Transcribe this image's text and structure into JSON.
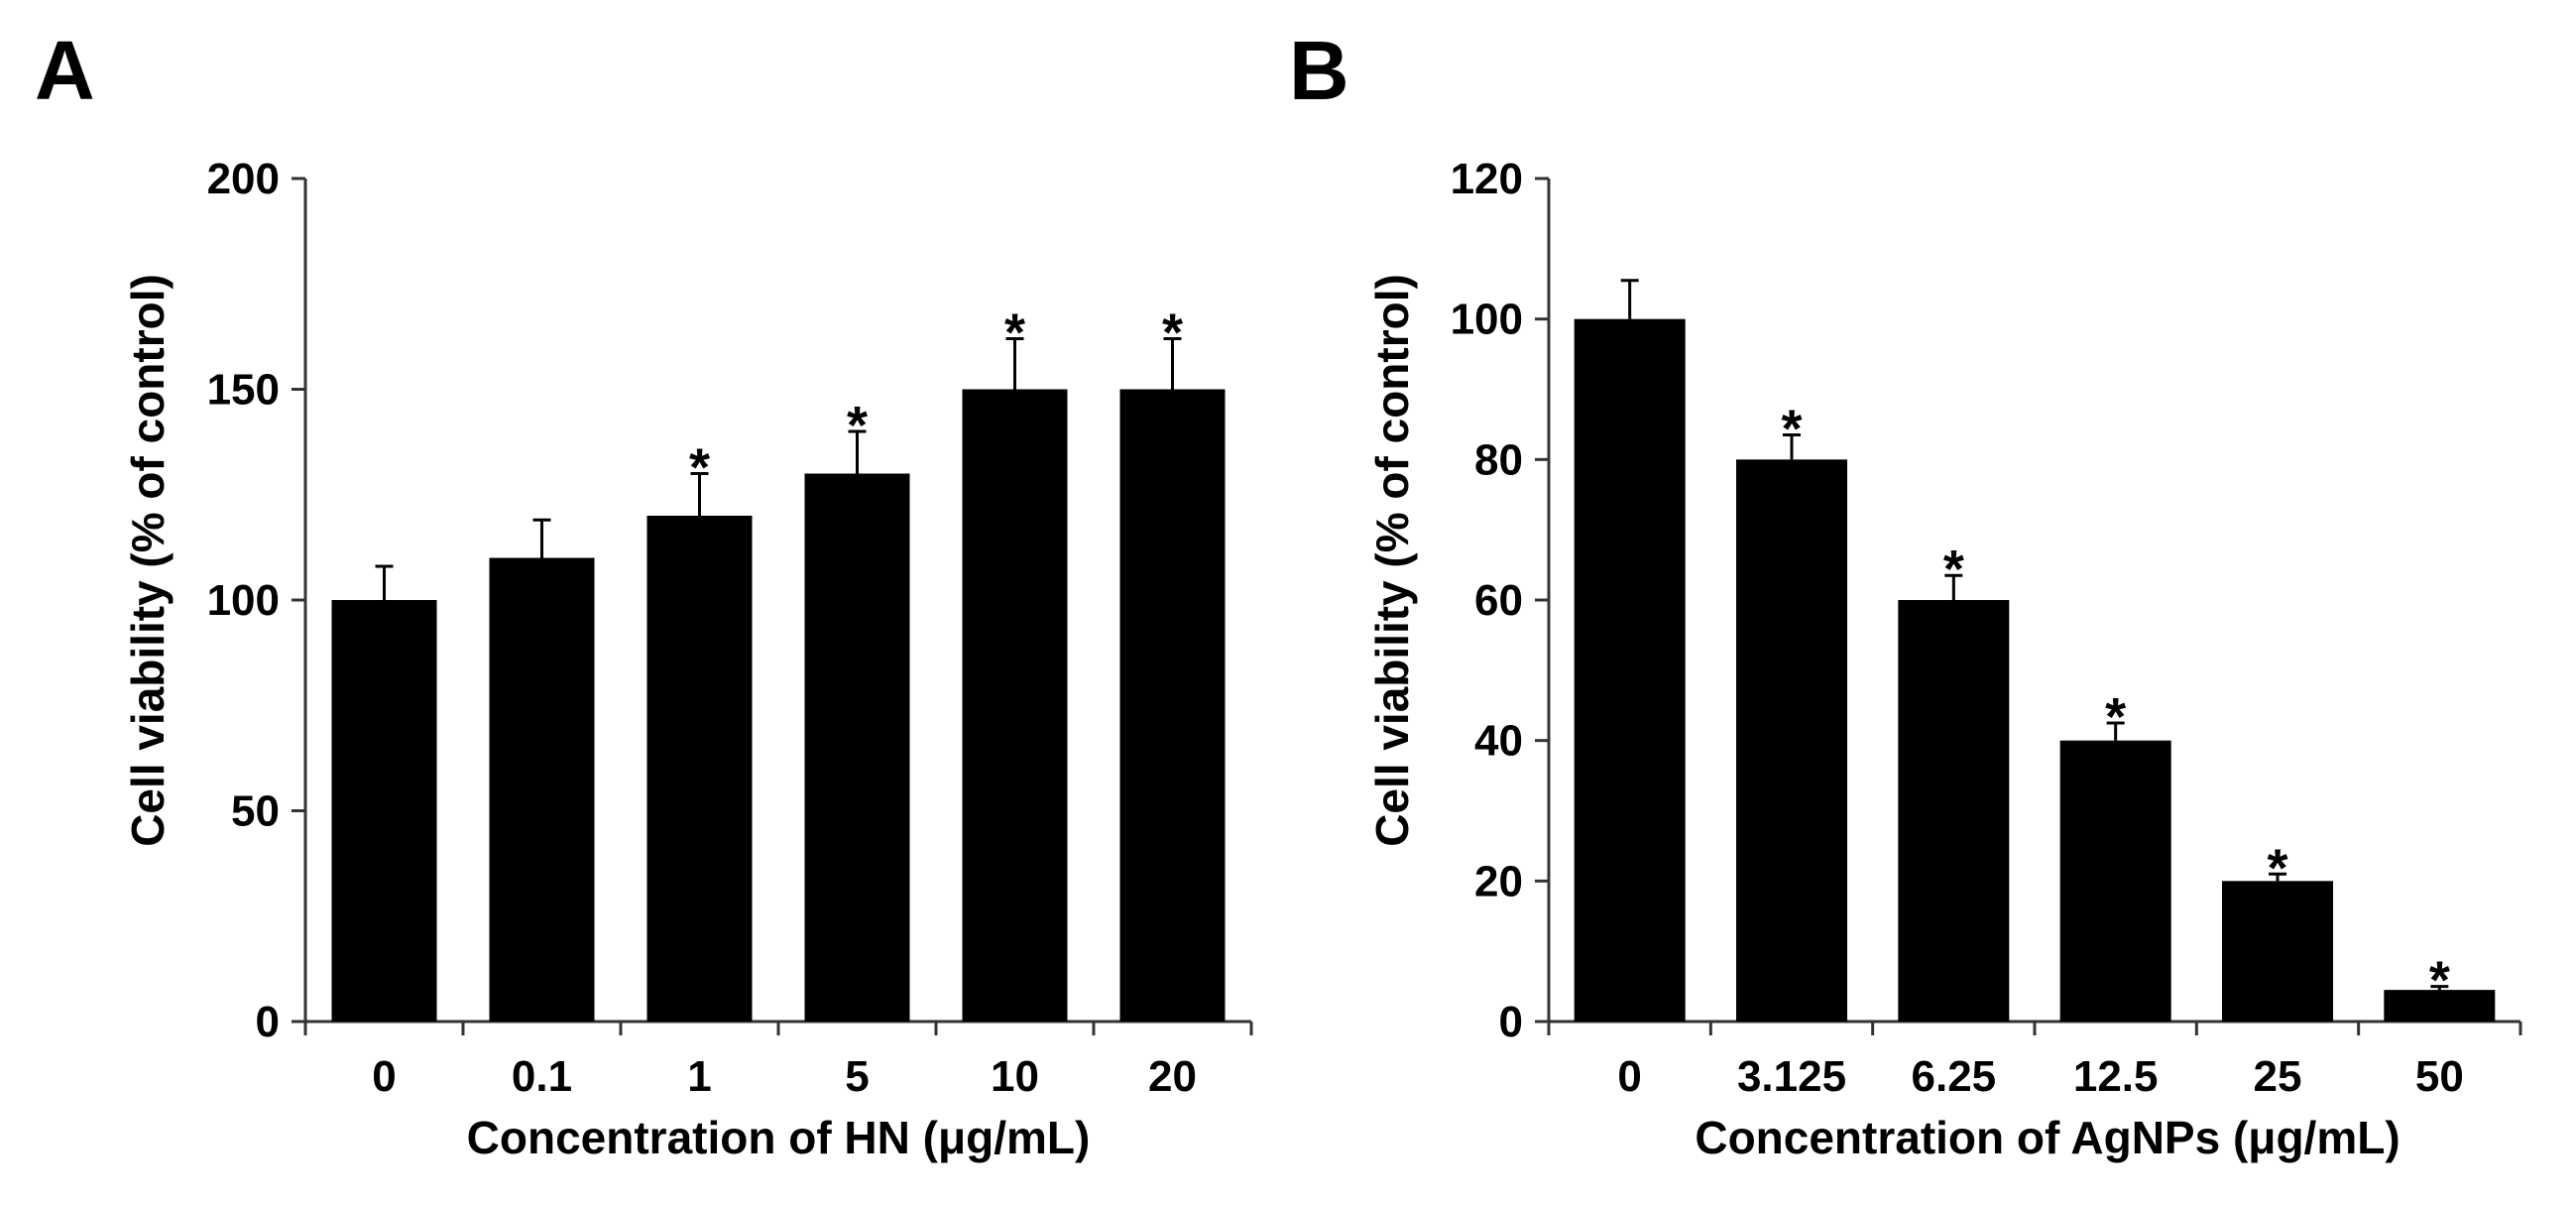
{
  "chart_data": [
    {
      "panel": "A",
      "type": "bar",
      "categories": [
        "0",
        "0.1",
        "1",
        "5",
        "10",
        "20"
      ],
      "values": [
        100,
        110,
        120,
        130,
        150,
        150
      ],
      "errors": [
        8,
        9,
        10,
        10,
        12,
        12
      ],
      "significance": [
        "",
        "",
        "*",
        "*",
        "*",
        "*"
      ],
      "xlabel": "Concentration of HN (μg/mL)",
      "ylabel": "Cell viability (% of control)",
      "ylim": [
        0,
        200
      ],
      "yticks": [
        "0",
        "50",
        "100",
        "150",
        "200"
      ],
      "color": "#000000"
    },
    {
      "panel": "B",
      "type": "bar",
      "categories": [
        "0",
        "3.125",
        "6.25",
        "12.5",
        "25",
        "50"
      ],
      "values": [
        100,
        80,
        60,
        40,
        20,
        4.5
      ],
      "errors": [
        5.5,
        3.5,
        3.5,
        2.5,
        1,
        0.5
      ],
      "significance": [
        "",
        "*",
        "*",
        "*",
        "*",
        "*"
      ],
      "xlabel": "Concentration of AgNPs (μg/mL)",
      "ylabel": "Cell viability (% of control)",
      "ylim": [
        0,
        120
      ],
      "yticks": [
        "0",
        "20",
        "40",
        "60",
        "80",
        "100",
        "120"
      ],
      "color": "#000000"
    }
  ]
}
